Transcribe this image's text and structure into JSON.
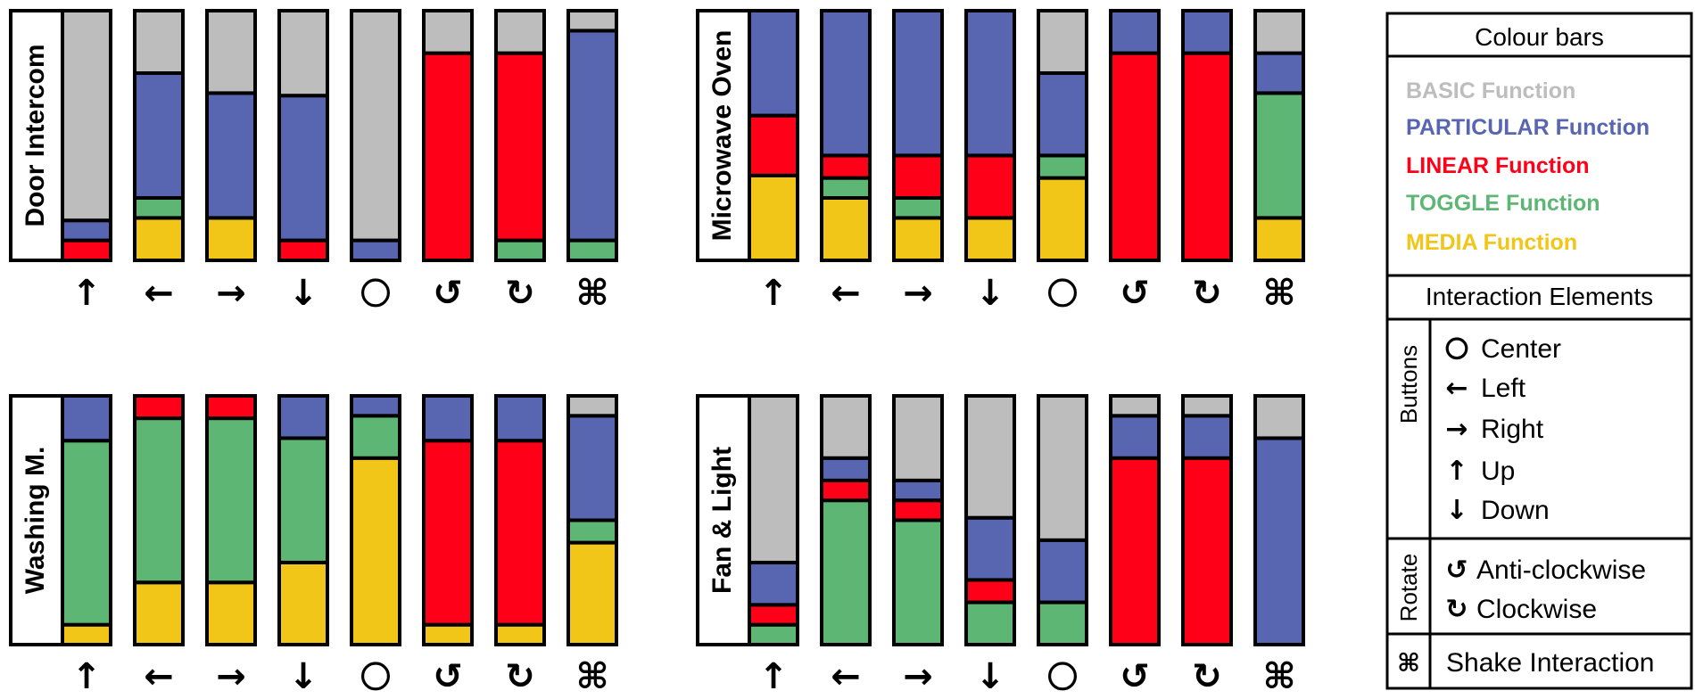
{
  "colors": {
    "basic": "#bdbdbd",
    "particular": "#5865b0",
    "linear": "#ff0019",
    "toggle": "#5db674",
    "media": "#f2c618",
    "border": "#000000"
  },
  "symbols": {
    "up": "↑",
    "left": "←",
    "right": "→",
    "down": "↓",
    "center": "○",
    "anticlockwise": "↺",
    "clockwise": "↻",
    "shake": "⌘"
  },
  "legend": {
    "title": "Colour bars",
    "items": [
      {
        "key": "basic",
        "label": "BASIC Function"
      },
      {
        "key": "particular",
        "label": "PARTICULAR Function"
      },
      {
        "key": "linear",
        "label": "LINEAR Function"
      },
      {
        "key": "toggle",
        "label": "TOGGLE Function"
      },
      {
        "key": "media",
        "label": "MEDIA Function"
      }
    ],
    "interaction_title": "Interaction Elements",
    "buttons_label": "Buttons",
    "rotate_label": "Rotate",
    "buttons": [
      {
        "symbol": "center",
        "label": "Center"
      },
      {
        "symbol": "left",
        "label": "Left"
      },
      {
        "symbol": "right",
        "label": "Right"
      },
      {
        "symbol": "up",
        "label": "Up"
      },
      {
        "symbol": "down",
        "label": "Down"
      }
    ],
    "rotate": [
      {
        "symbol": "anticlockwise",
        "label": "Anti-clockwise"
      },
      {
        "symbol": "clockwise",
        "label": "Clockwise"
      }
    ],
    "shake": {
      "symbol": "shake",
      "label": "Shake Interaction"
    }
  },
  "chart_data": {
    "type": "bar",
    "stacked": true,
    "ylim": [
      0,
      100
    ],
    "series_order": [
      "media",
      "toggle",
      "linear",
      "particular",
      "basic"
    ],
    "categories": [
      "up",
      "left",
      "right",
      "down",
      "center",
      "anticlockwise",
      "clockwise",
      "shake"
    ],
    "panels": [
      {
        "title": "Door Intercom",
        "bars": [
          {
            "media": 0,
            "toggle": 0,
            "linear": 8,
            "particular": 8,
            "basic": 84
          },
          {
            "media": 17,
            "toggle": 8,
            "linear": 0,
            "particular": 50,
            "basic": 25
          },
          {
            "media": 17,
            "toggle": 0,
            "linear": 0,
            "particular": 50,
            "basic": 33
          },
          {
            "media": 0,
            "toggle": 0,
            "linear": 8,
            "particular": 58,
            "basic": 34
          },
          {
            "media": 0,
            "toggle": 0,
            "linear": 0,
            "particular": 8,
            "basic": 92
          },
          {
            "media": 0,
            "toggle": 0,
            "linear": 83,
            "particular": 0,
            "basic": 17
          },
          {
            "media": 0,
            "toggle": 8,
            "linear": 75,
            "particular": 0,
            "basic": 17
          },
          {
            "media": 0,
            "toggle": 8,
            "linear": 0,
            "particular": 84,
            "basic": 8
          }
        ]
      },
      {
        "title": "Microwave Oven",
        "bars": [
          {
            "media": 34,
            "toggle": 0,
            "linear": 24,
            "particular": 42,
            "basic": 0
          },
          {
            "media": 25,
            "toggle": 8,
            "linear": 9,
            "particular": 58,
            "basic": 0
          },
          {
            "media": 17,
            "toggle": 8,
            "linear": 17,
            "particular": 58,
            "basic": 0
          },
          {
            "media": 17,
            "toggle": 0,
            "linear": 25,
            "particular": 58,
            "basic": 0
          },
          {
            "media": 33,
            "toggle": 9,
            "linear": 0,
            "particular": 33,
            "basic": 25
          },
          {
            "media": 0,
            "toggle": 0,
            "linear": 83,
            "particular": 17,
            "basic": 0
          },
          {
            "media": 0,
            "toggle": 0,
            "linear": 83,
            "particular": 17,
            "basic": 0
          },
          {
            "media": 17,
            "toggle": 50,
            "linear": 0,
            "particular": 16,
            "basic": 17
          }
        ]
      },
      {
        "title": "Washing M.",
        "bars": [
          {
            "media": 8,
            "toggle": 74,
            "linear": 0,
            "particular": 18,
            "basic": 0
          },
          {
            "media": 25,
            "toggle": 66,
            "linear": 9,
            "particular": 0,
            "basic": 0
          },
          {
            "media": 25,
            "toggle": 66,
            "linear": 9,
            "particular": 0,
            "basic": 0
          },
          {
            "media": 33,
            "toggle": 50,
            "linear": 0,
            "particular": 17,
            "basic": 0
          },
          {
            "media": 75,
            "toggle": 17,
            "linear": 0,
            "particular": 8,
            "basic": 0
          },
          {
            "media": 8,
            "toggle": 0,
            "linear": 74,
            "particular": 18,
            "basic": 0
          },
          {
            "media": 8,
            "toggle": 0,
            "linear": 74,
            "particular": 18,
            "basic": 0
          },
          {
            "media": 41,
            "toggle": 9,
            "linear": 0,
            "particular": 42,
            "basic": 8
          }
        ]
      },
      {
        "title": "Fan & Light",
        "bars": [
          {
            "media": 0,
            "toggle": 8,
            "linear": 8,
            "particular": 17,
            "basic": 67
          },
          {
            "media": 0,
            "toggle": 58,
            "linear": 8,
            "particular": 9,
            "basic": 25
          },
          {
            "media": 0,
            "toggle": 50,
            "linear": 8,
            "particular": 8,
            "basic": 34
          },
          {
            "media": 0,
            "toggle": 17,
            "linear": 9,
            "particular": 25,
            "basic": 49
          },
          {
            "media": 0,
            "toggle": 17,
            "linear": 0,
            "particular": 25,
            "basic": 58
          },
          {
            "media": 0,
            "toggle": 0,
            "linear": 75,
            "particular": 17,
            "basic": 8
          },
          {
            "media": 0,
            "toggle": 0,
            "linear": 75,
            "particular": 17,
            "basic": 8
          },
          {
            "media": 0,
            "toggle": 0,
            "linear": 0,
            "particular": 83,
            "basic": 17
          }
        ]
      }
    ]
  }
}
